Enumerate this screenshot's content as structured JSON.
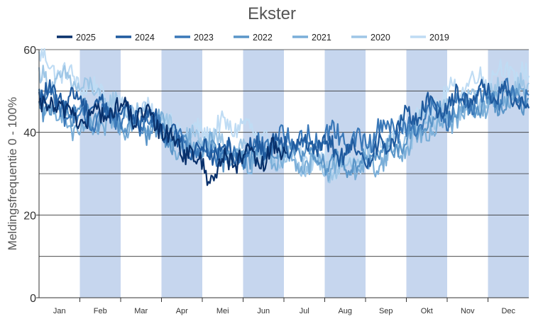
{
  "chart_data": {
    "type": "line",
    "title": "Ekster",
    "ylabel": "Meldingsfrequentie 0 - 100%",
    "xlabel": "",
    "ylim": [
      0,
      60
    ],
    "y_ticks": [
      "0",
      "20",
      "40",
      "60"
    ],
    "months": [
      "Jan",
      "Feb",
      "Mar",
      "Apr",
      "Mei",
      "Jun",
      "Jul",
      "Aug",
      "Sep",
      "Okt",
      "Nov",
      "Dec"
    ],
    "shaded_months": [
      "Feb",
      "Apr",
      "Jun",
      "Aug",
      "Okt",
      "Dec"
    ],
    "grid": "horizontal",
    "legend_position": "top",
    "x_unit": "day of year",
    "series": [
      {
        "name": "2025",
        "color": "#08306b",
        "x": [
          1,
          15,
          30,
          45,
          60,
          75,
          90,
          100,
          110,
          120,
          130,
          140,
          150,
          165,
          175,
          185
        ],
        "values": [
          45,
          47,
          43,
          44,
          46,
          44,
          42,
          38,
          36,
          32,
          30,
          33,
          34,
          33,
          35,
          36
        ]
      },
      {
        "name": "2024",
        "color": "#1f5a9e",
        "x": [
          1,
          30,
          60,
          90,
          105,
          120,
          150,
          180,
          200,
          220,
          240,
          260,
          275,
          290,
          305,
          320,
          335,
          350,
          365
        ],
        "values": [
          49,
          48,
          45,
          43,
          37,
          36,
          35,
          38,
          37,
          36,
          34,
          37,
          44,
          46,
          47,
          49,
          50,
          48,
          47
        ]
      },
      {
        "name": "2023",
        "color": "#3a78b8",
        "x": [
          1,
          30,
          60,
          90,
          105,
          120,
          150,
          180,
          200,
          220,
          240,
          260,
          275,
          290,
          305,
          320,
          335,
          350,
          365
        ],
        "values": [
          50,
          43,
          44,
          41,
          38,
          36,
          34,
          39,
          38,
          40,
          37,
          42,
          40,
          45,
          44,
          48,
          48,
          50,
          49
        ]
      },
      {
        "name": "2022",
        "color": "#5a95c8",
        "x": [
          1,
          30,
          60,
          90,
          105,
          120,
          150,
          180,
          200,
          220,
          240,
          260,
          275,
          290,
          305,
          320,
          335,
          350,
          365
        ],
        "values": [
          46,
          45,
          42,
          40,
          37,
          35,
          34,
          36,
          35,
          33,
          32,
          36,
          38,
          42,
          45,
          46,
          47,
          48,
          47
        ]
      },
      {
        "name": "2021",
        "color": "#7aaed8",
        "x": [
          1,
          30,
          60,
          90,
          105,
          120,
          150,
          180,
          200,
          220,
          240,
          260,
          275,
          290,
          305,
          320,
          335,
          350,
          365
        ],
        "values": [
          48,
          40,
          42,
          43,
          36,
          38,
          33,
          34,
          32,
          32,
          31,
          34,
          37,
          40,
          43,
          45,
          46,
          49,
          48
        ]
      },
      {
        "name": "2020",
        "color": "#9ec6e6",
        "x": [
          1,
          30,
          60,
          90,
          105,
          120,
          150,
          180,
          200,
          220,
          240,
          260,
          275,
          290,
          305,
          320,
          335,
          350,
          365
        ],
        "values": [
          53,
          52,
          46,
          43,
          39,
          38,
          36,
          33,
          32,
          31,
          33,
          36,
          38,
          44,
          45,
          47,
          49,
          51,
          50
        ]
      },
      {
        "name": "2019",
        "color": "#bfdcf4",
        "x": [
          1,
          30,
          60,
          90,
          105,
          120,
          150,
          180,
          200,
          220,
          240,
          260,
          275,
          290,
          305,
          320,
          335,
          350,
          365
        ],
        "values": [
          58,
          52,
          47,
          44,
          40,
          40,
          42,
          36,
          34,
          32,
          34,
          38,
          42,
          46,
          49,
          52,
          54,
          55,
          53
        ]
      }
    ]
  }
}
